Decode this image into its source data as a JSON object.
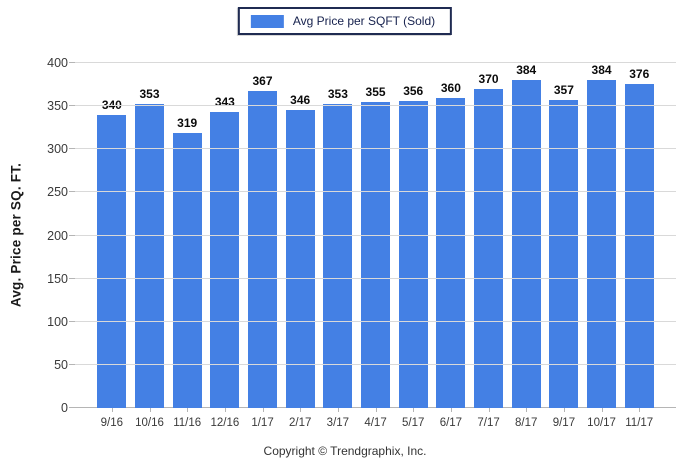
{
  "legend": {
    "label": "Avg Price per SQFT (Sold)"
  },
  "footer": {
    "copyright": "Copyright © Trendgraphix, Inc."
  },
  "colors": {
    "bar": "#4480e4",
    "grid": "#d9d9d9",
    "axis": "#b5b5b5",
    "legend_border": "#1f2b52",
    "legend_text": "#16214d"
  },
  "chart_data": {
    "type": "bar",
    "title": "",
    "categories": [
      "9/16",
      "10/16",
      "11/16",
      "12/16",
      "1/17",
      "2/17",
      "3/17",
      "4/17",
      "5/17",
      "6/17",
      "7/17",
      "8/17",
      "9/17",
      "10/17",
      "11/17"
    ],
    "series": [
      {
        "name": "Avg Price per SQFT (Sold)",
        "values": [
          340,
          353,
          319,
          343,
          367,
          346,
          353,
          355,
          356,
          360,
          370,
          384,
          357,
          384,
          376
        ]
      }
    ],
    "xlabel": "",
    "ylabel": "Avg. Price per SQ. FT.",
    "ylim": [
      0,
      400
    ],
    "ytick_step": 50,
    "grid": true,
    "legend_position": "top",
    "data_labels": true
  }
}
